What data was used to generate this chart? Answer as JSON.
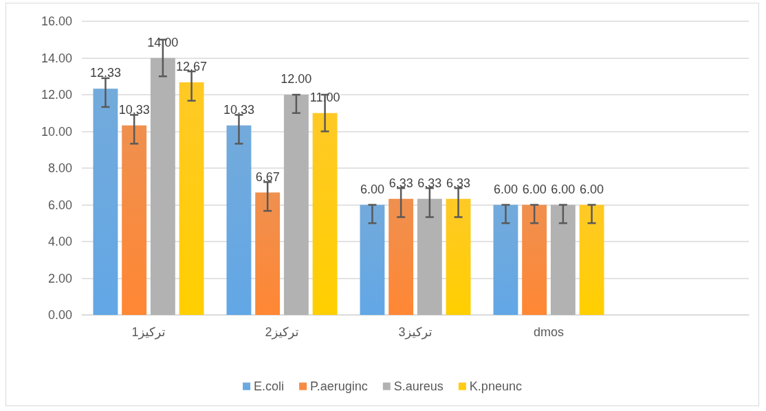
{
  "chart_data": {
    "type": "bar",
    "categories": [
      "تركيز1",
      "تركيز2",
      "تركيز3",
      "dmos",
      null
    ],
    "series": [
      {
        "name": "E.coli",
        "color": "#5b9bd5",
        "values": [
          12.33,
          10.33,
          6.0,
          6.0,
          null
        ],
        "value_labels": [
          "12.33",
          "10.33",
          "6.00",
          "6.00",
          null
        ],
        "errors": [
          [
            11.33,
            12.9
          ],
          [
            9.33,
            10.9
          ],
          [
            5,
            6
          ],
          [
            5,
            6
          ],
          null
        ]
      },
      {
        "name": "P.aeruginc",
        "color": "#ed7d31",
        "values": [
          10.33,
          6.67,
          6.33,
          6.0,
          null
        ],
        "value_labels": [
          "10.33",
          "6.67",
          "6.33",
          "6.00",
          null
        ],
        "errors": [
          [
            9.33,
            10.9
          ],
          [
            5.67,
            7.24
          ],
          [
            5.33,
            6.91
          ],
          [
            5,
            6
          ],
          null
        ]
      },
      {
        "name": "S.aureus",
        "color": "#a5a5a5",
        "values": [
          14.0,
          12.0,
          6.33,
          6.0,
          null
        ],
        "value_labels": [
          "14.00",
          "12.00",
          "6.33",
          "6.00",
          null
        ],
        "errors": [
          [
            13,
            15
          ],
          [
            11,
            12
          ],
          [
            5.33,
            6.91
          ],
          [
            5,
            6
          ],
          null
        ]
      },
      {
        "name": "K.pneunc",
        "color": "#ffc000",
        "values": [
          12.67,
          11.0,
          6.33,
          6.0,
          null
        ],
        "value_labels": [
          "12.67",
          "11.00",
          "6.33",
          "6.00",
          null
        ],
        "errors": [
          [
            11.67,
            13.27
          ],
          [
            10,
            12
          ],
          [
            5.33,
            6.91
          ],
          [
            5,
            6
          ],
          null
        ]
      }
    ],
    "ylim": [
      0,
      16
    ],
    "yticks": [
      {
        "value": 0,
        "label": "0.00"
      },
      {
        "value": 2,
        "label": "2.00"
      },
      {
        "value": 4,
        "label": "4.00"
      },
      {
        "value": 6,
        "label": "6.00"
      },
      {
        "value": 8,
        "label": "8.00"
      },
      {
        "value": 10,
        "label": "10.00"
      },
      {
        "value": 12,
        "label": "12.00"
      },
      {
        "value": 14,
        "label": "14.00"
      },
      {
        "value": 16,
        "label": "16.00"
      }
    ],
    "grid": "y",
    "legend": "bottom"
  }
}
